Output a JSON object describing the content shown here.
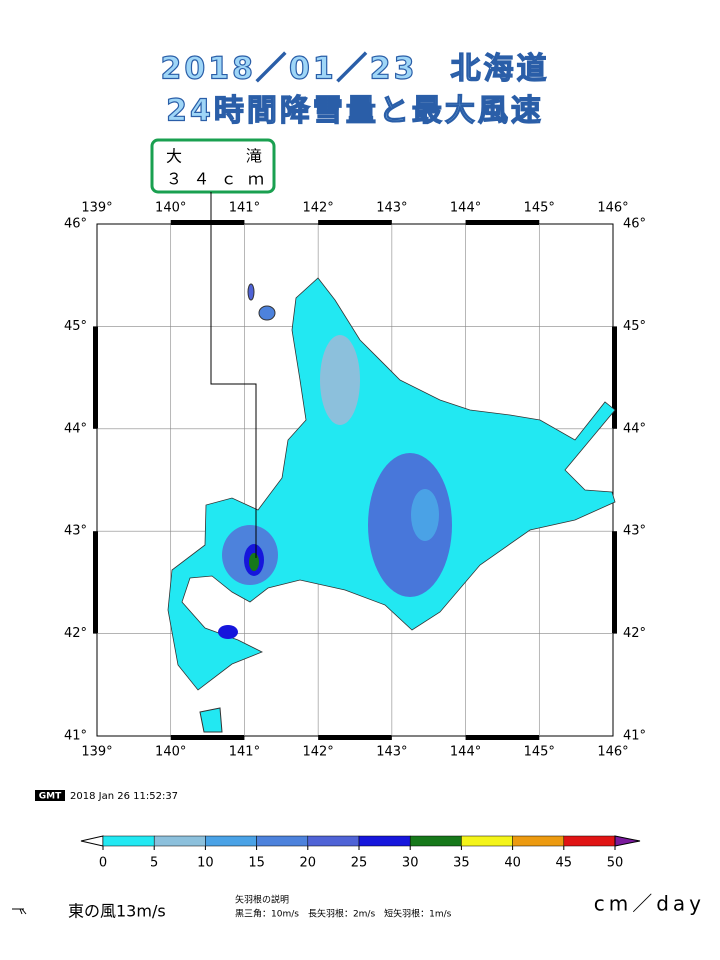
{
  "title": [
    "2018／01／23　北海道",
    "24時間降雪量と最大風速"
  ],
  "callout": {
    "place": "大　　滝",
    "amount": "３４ｃｍ"
  },
  "longitudes": [
    "139°",
    "140°",
    "141°",
    "142°",
    "143°",
    "144°",
    "145°",
    "146°"
  ],
  "latitudes": [
    "46°",
    "45°",
    "44°",
    "43°",
    "42°",
    "41°"
  ],
  "stamp": {
    "logo": "GMT",
    "time": "2018 Jan 26 11:52:37"
  },
  "colorbar": {
    "ticks": [
      0,
      5,
      10,
      15,
      20,
      25,
      30,
      35,
      40,
      45,
      50
    ],
    "colors": [
      "#22e8f2",
      "#8cc0dc",
      "#4aa2e6",
      "#4d82dc",
      "#4f63d6",
      "#1616dc",
      "#16781a",
      "#f4f41a",
      "#ec9a10",
      "#e01414"
    ],
    "under": "#ffffff",
    "over": "#7a1a9c",
    "unit": "cm／day"
  },
  "legend": {
    "sample": "東の風13m/s",
    "heading": "矢羽根の説明",
    "detail": "黒三角：10m/s　長矢羽根：2m/s　短矢羽根：1m/s"
  }
}
